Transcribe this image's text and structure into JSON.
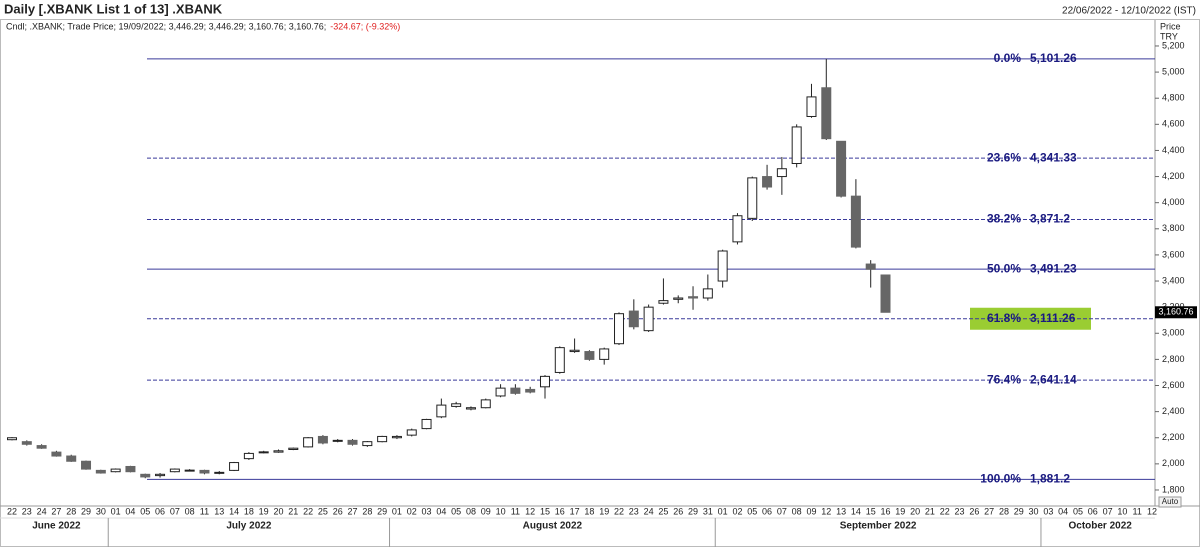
{
  "chart_data": {
    "type": "candlestick",
    "title": "Daily [.XBANK List 1 of 13] .XBANK",
    "date_range": "22/06/2022 - 12/10/2022 (IST)",
    "legend_text": "Cndl; .XBANK; Trade Price; 19/09/2022; 3,446.29; 3,446.29; 3,160.76; 3,160.76;",
    "legend_change": "-324.67; (-9.32%)",
    "axis_title": "Price",
    "axis_unit": "TRY",
    "auto_button": "Auto",
    "up_color": "#ffffff",
    "down_color": "#666666",
    "fib_color": "#3a3a9a",
    "highlight_color": "#9acd32",
    "categories": [
      "22",
      "23",
      "24",
      "27",
      "28",
      "29",
      "30",
      "01",
      "04",
      "05",
      "06",
      "07",
      "08",
      "11",
      "13",
      "14",
      "18",
      "19",
      "20",
      "21",
      "22",
      "25",
      "26",
      "27",
      "28",
      "29",
      "01",
      "02",
      "03",
      "04",
      "05",
      "08",
      "09",
      "10",
      "11",
      "12",
      "15",
      "16",
      "17",
      "18",
      "19",
      "22",
      "23",
      "24",
      "25",
      "26",
      "29",
      "31",
      "01",
      "02",
      "05",
      "06",
      "07",
      "08",
      "09",
      "12",
      "13",
      "14",
      "15",
      "16",
      "19",
      "20",
      "21",
      "22",
      "23",
      "26",
      "27",
      "28",
      "29",
      "30",
      "03",
      "04",
      "05",
      "06",
      "07",
      "10",
      "11",
      "12"
    ],
    "months": [
      "June 2022",
      "July 2022",
      "August 2022",
      "September 2022",
      "October 2022"
    ],
    "open": [
      2185,
      2170,
      2140,
      2090,
      2060,
      2020,
      1950,
      1940,
      1980,
      1920,
      1910,
      1940,
      1950,
      1950,
      1930,
      1950,
      2040,
      2085,
      2090,
      2110,
      2130,
      2210,
      2175,
      2180,
      2140,
      2170,
      2200,
      2220,
      2270,
      2360,
      2440,
      2420,
      2430,
      2520,
      2580,
      2570,
      2590,
      2700,
      2860,
      2860,
      2800,
      2920,
      3170,
      3020,
      3230,
      3260,
      3280,
      3270,
      3400,
      3700,
      3880,
      4200,
      4200,
      4300,
      4660,
      4880,
      4470,
      4050,
      3530,
      3446.29,
      null,
      null,
      null,
      null,
      null,
      null,
      null,
      null,
      null,
      null,
      null,
      null,
      null,
      null,
      null,
      null,
      null,
      null
    ],
    "high": [
      2205,
      2180,
      2150,
      2100,
      2070,
      2025,
      1955,
      1965,
      1985,
      1925,
      1930,
      1965,
      1960,
      1955,
      1945,
      2015,
      2090,
      2100,
      2110,
      2125,
      2205,
      2220,
      2190,
      2190,
      2175,
      2215,
      2220,
      2270,
      2345,
      2500,
      2475,
      2440,
      2500,
      2610,
      2610,
      2590,
      2680,
      2900,
      2960,
      2870,
      2890,
      3160,
      3260,
      3220,
      3420,
      3290,
      3360,
      3450,
      3640,
      3920,
      4200,
      4290,
      4350,
      4600,
      4910,
      5101.26,
      4470,
      4180,
      3560,
      3446.29,
      null,
      null,
      null,
      null,
      null,
      null,
      null,
      null,
      null,
      null,
      null,
      null,
      null,
      null,
      null,
      null,
      null,
      null
    ],
    "low": [
      2180,
      2140,
      2115,
      2055,
      2015,
      1955,
      1925,
      1935,
      1935,
      1890,
      1895,
      1935,
      1945,
      1920,
      1920,
      1945,
      2030,
      2080,
      2085,
      2105,
      2125,
      2150,
      2165,
      2140,
      2130,
      2165,
      2190,
      2210,
      2265,
      2350,
      2430,
      2410,
      2425,
      2510,
      2530,
      2540,
      2500,
      2690,
      2850,
      2790,
      2760,
      2910,
      3030,
      3010,
      3220,
      3230,
      3180,
      3250,
      3350,
      3680,
      3860,
      4100,
      4060,
      4270,
      4650,
      4480,
      4040,
      3650,
      3350,
      3160.76,
      null,
      null,
      null,
      null,
      null,
      null,
      null,
      null,
      null,
      null,
      null,
      null,
      null,
      null,
      null,
      null,
      null,
      null
    ],
    "close": [
      2200,
      2150,
      2120,
      2060,
      2020,
      1960,
      1930,
      1960,
      1940,
      1900,
      1920,
      1960,
      1952,
      1930,
      1935,
      2010,
      2080,
      2092,
      2100,
      2120,
      2200,
      2160,
      2180,
      2150,
      2170,
      2210,
      2210,
      2260,
      2340,
      2450,
      2460,
      2430,
      2490,
      2580,
      2540,
      2550,
      2670,
      2890,
      2870,
      2800,
      2880,
      3150,
      3050,
      3200,
      3250,
      3270,
      3270,
      3340,
      3630,
      3900,
      4190,
      4120,
      4260,
      4580,
      4810,
      4490,
      4050,
      3660,
      3490,
      3160.76,
      null,
      null,
      null,
      null,
      null,
      null,
      null,
      null,
      null,
      null,
      null,
      null,
      null,
      null,
      null,
      null,
      null,
      null
    ],
    "last_price_label": "3,160.76",
    "fib_levels": [
      {
        "percent": "0.0%",
        "value": 5101.26,
        "value_label": "5,101.26",
        "dashed": false
      },
      {
        "percent": "23.6%",
        "value": 4341.33,
        "value_label": "4,341.33",
        "dashed": true
      },
      {
        "percent": "38.2%",
        "value": 3871.2,
        "value_label": "3,871.2",
        "dashed": true
      },
      {
        "percent": "50.0%",
        "value": 3491.23,
        "value_label": "3,491.23",
        "dashed": false
      },
      {
        "percent": "61.8%",
        "value": 3111.26,
        "value_label": "3,111.26",
        "dashed": true,
        "highlight": true
      },
      {
        "percent": "76.4%",
        "value": 2641.14,
        "value_label": "2,641.14",
        "dashed": true
      },
      {
        "percent": "100.0%",
        "value": 1881.2,
        "value_label": "1,881.2",
        "dashed": false
      }
    ],
    "ylim": [
      1685,
      5284
    ],
    "yticks": [
      {
        "value": 1800,
        "label": "1,800"
      },
      {
        "value": 2000,
        "label": "2,000"
      },
      {
        "value": 2200,
        "label": "2,200"
      },
      {
        "value": 2400,
        "label": "2,400"
      },
      {
        "value": 2600,
        "label": "2,600"
      },
      {
        "value": 2800,
        "label": "2,800"
      },
      {
        "value": 3000,
        "label": "3,000"
      },
      {
        "value": 3200,
        "label": "3,200"
      },
      {
        "value": 3400,
        "label": "3,400"
      },
      {
        "value": 3600,
        "label": "3,600"
      },
      {
        "value": 3800,
        "label": "3,800"
      },
      {
        "value": 4000,
        "label": "4,000"
      },
      {
        "value": 4200,
        "label": "4,200"
      },
      {
        "value": 4400,
        "label": "4,400"
      },
      {
        "value": 4600,
        "label": "4,600"
      },
      {
        "value": 4800,
        "label": "4,800"
      },
      {
        "value": 5000,
        "label": "5,000"
      },
      {
        "value": 5200,
        "label": "5,200"
      }
    ]
  }
}
